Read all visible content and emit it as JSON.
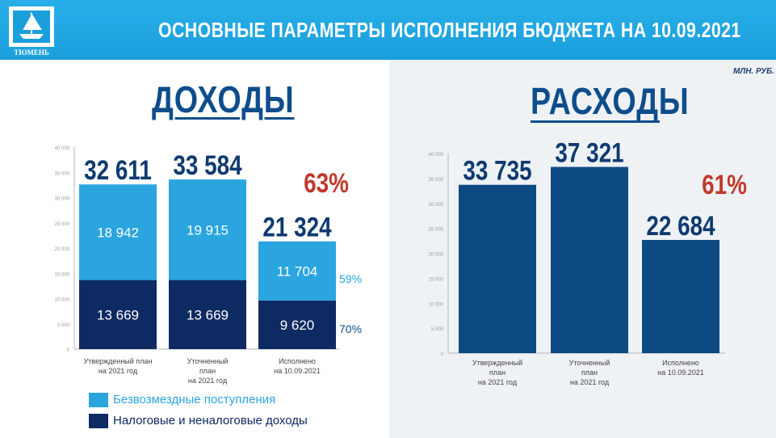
{
  "header": {
    "title": "ОСНОВНЫЕ ПАРАМЕТРЫ ИСПОЛНЕНИЯ БЮДЖЕТА НА 10.09.2021",
    "logo_text": "ТЮМЕНЬ"
  },
  "units": "МЛН. РУБ.",
  "colors": {
    "header": "#1fa3de",
    "light_series": "#2aa5e0",
    "dark_series": "#0e2a63",
    "expense_bar": "#0d4a84",
    "percent_red": "#c0392b",
    "title_blue": "#0e4d8c"
  },
  "chart_data": [
    {
      "type": "bar",
      "title": "ДОХОДЫ",
      "stacked": true,
      "categories": [
        "Утвержденный план на 2021 год",
        "Уточненный план на 2021 год",
        "Исполнено на 10.09.2021"
      ],
      "category_lines": [
        [
          "Утвержденный план",
          "на 2021 год"
        ],
        [
          "Уточненный",
          "план",
          "на 2021 год"
        ],
        [
          "Исполнено",
          "на 10.09.2021"
        ]
      ],
      "series": [
        {
          "name": "Налоговые и неналоговые доходы",
          "values": [
            13669,
            13669,
            9620
          ],
          "labels": [
            "13 669",
            "13 669",
            "9 620"
          ],
          "color": "#0e2a63"
        },
        {
          "name": "Безвозмездные поступления",
          "values": [
            18942,
            19915,
            11704
          ],
          "labels": [
            "18 942",
            "19 915",
            "11 704"
          ],
          "color": "#2aa5e0"
        }
      ],
      "totals": [
        32611,
        33584,
        21324
      ],
      "total_labels": [
        "32 611",
        "33 584",
        "21 324"
      ],
      "percent_total": "63%",
      "percent_series": {
        "light": "59%",
        "dark": "70%"
      },
      "ylim": [
        0,
        40000
      ],
      "yticks": [
        0,
        5000,
        10000,
        15000,
        20000,
        25000,
        30000,
        35000,
        40000
      ],
      "ytick_labels": [
        "0",
        "5 000",
        "10 000",
        "15 000",
        "20 000",
        "25 000",
        "30 000",
        "35 000",
        "40 000"
      ],
      "legend": {
        "position": "bottom-left",
        "items": [
          "Безвозмездные поступления",
          "Налоговые и неналоговые доходы"
        ]
      }
    },
    {
      "type": "bar",
      "title": "РАСХОДЫ",
      "categories": [
        "Утвержденный план на 2021 год",
        "Уточненный план на 2021 год",
        "Исполнено на 10.09.2021"
      ],
      "category_lines": [
        [
          "Утвержденный",
          "план",
          "на 2021 год"
        ],
        [
          "Уточненный",
          "план",
          "на 2021 год"
        ],
        [
          "Исполнено",
          "на 10.09.2021"
        ]
      ],
      "values": [
        33735,
        37321,
        22684
      ],
      "value_labels": [
        "33 735",
        "37 321",
        "22 684"
      ],
      "percent_total": "61%",
      "ylim": [
        0,
        40000
      ],
      "yticks": [
        0,
        5000,
        10000,
        15000,
        20000,
        25000,
        30000,
        35000,
        40000
      ],
      "ytick_labels": [
        "0",
        "5 000",
        "10 000",
        "15 000",
        "20 000",
        "25 000",
        "30 000",
        "35 000",
        "40 000"
      ]
    }
  ]
}
